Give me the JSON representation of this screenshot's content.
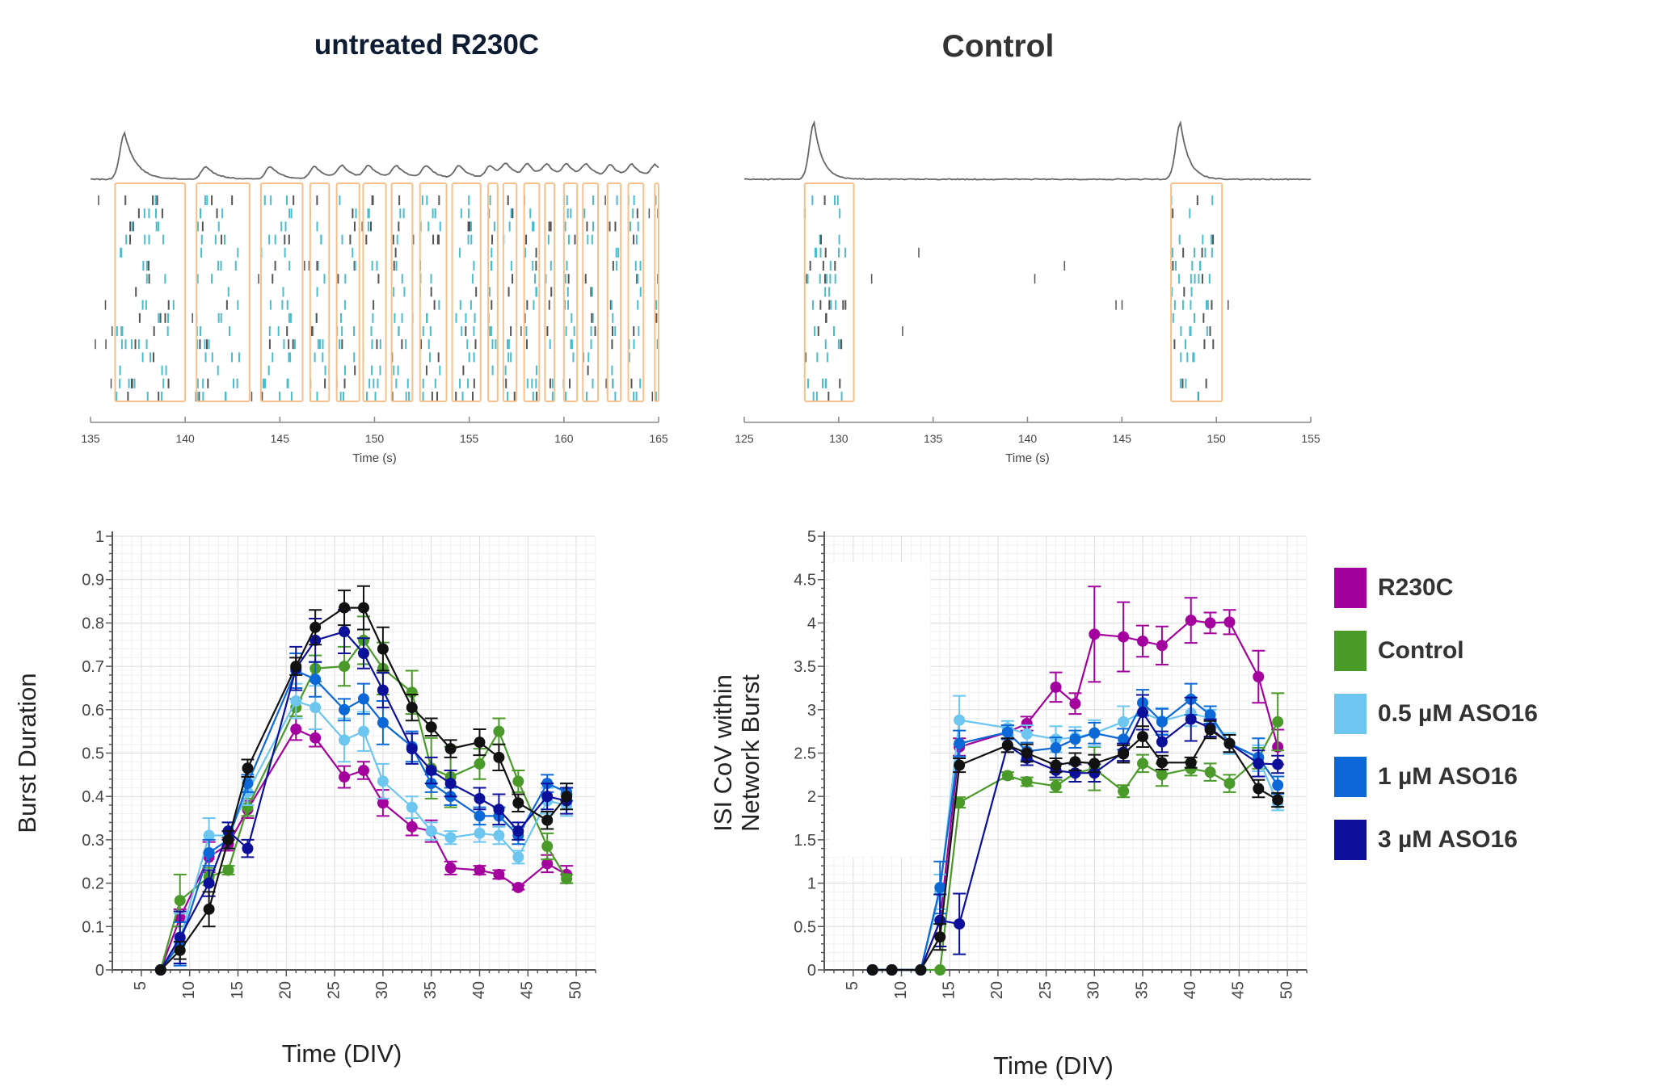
{
  "titles": {
    "left": "untreated R230C",
    "right": "Control"
  },
  "legend": {
    "items": [
      {
        "label": "R230C",
        "color": "#a3009e"
      },
      {
        "label": "Control",
        "color": "#4a9a2a"
      },
      {
        "label": "0.5 µM ASO16",
        "color": "#6cc6f0"
      },
      {
        "label": "1 µM ASO16",
        "color": "#0b68d6"
      },
      {
        "label": "3 µM ASO16",
        "color": "#0b0f9a"
      }
    ]
  },
  "chart_data": [
    {
      "type": "scatter",
      "title": "untreated R230C",
      "xlabel": "Time (s)",
      "xlim": [
        135,
        165
      ],
      "xticks": [
        135,
        140,
        145,
        150,
        155,
        160,
        165
      ],
      "burst_windows": [
        [
          136.3,
          140.0
        ],
        [
          140.6,
          143.4
        ],
        [
          144.0,
          146.2
        ],
        [
          146.6,
          147.6
        ],
        [
          148.0,
          149.2
        ],
        [
          149.4,
          150.6
        ],
        [
          150.9,
          152.0
        ],
        [
          152.4,
          153.8
        ],
        [
          154.1,
          155.6
        ],
        [
          156.0,
          156.5
        ],
        [
          156.8,
          157.5
        ],
        [
          157.9,
          158.7
        ],
        [
          159.0,
          159.5
        ],
        [
          160.0,
          160.7
        ],
        [
          161.0,
          161.8
        ],
        [
          162.3,
          163.0
        ],
        [
          163.4,
          164.2
        ],
        [
          164.8,
          165.0
        ]
      ],
      "colors": {
        "spike": "#555555",
        "burst_spike": "#4bbccc",
        "window": "#f7c08a",
        "trace": "#666666"
      }
    },
    {
      "type": "scatter",
      "title": "Control",
      "xlabel": "Time (s)",
      "xlim": [
        125,
        155
      ],
      "xticks": [
        125,
        130,
        135,
        140,
        145,
        150,
        155
      ],
      "burst_windows": [
        [
          128.2,
          130.8
        ],
        [
          147.6,
          150.3
        ]
      ],
      "colors": {
        "spike": "#555555",
        "burst_spike": "#4bbccc",
        "window": "#f7c08a",
        "trace": "#666666"
      }
    },
    {
      "type": "line",
      "xlabel": "Time (DIV)",
      "ylabel": "Burst Duration",
      "xlim": [
        2,
        52
      ],
      "ylim": [
        0,
        1
      ],
      "grid": true,
      "xticks": [
        5,
        10,
        15,
        20,
        25,
        30,
        35,
        40,
        45,
        50
      ],
      "yticks": [
        0,
        0.1,
        0.2,
        0.3,
        0.4,
        0.5,
        0.6,
        0.7,
        0.8,
        0.9,
        1
      ],
      "ytick_labels": [
        "0",
        "0.1",
        "0.2",
        "0.3",
        "0.4",
        "0.5",
        "0.6",
        "0.7",
        "0.8",
        "0.9",
        "1"
      ],
      "x": [
        7,
        9,
        12,
        14,
        16,
        21,
        23,
        26,
        28,
        30,
        33,
        35,
        37,
        40,
        42,
        44,
        47,
        49
      ],
      "series": [
        {
          "name": "R230C",
          "color": "#a3009e",
          "values": [
            0,
            0.12,
            0.26,
            0.29,
            0.37,
            0.555,
            0.535,
            0.445,
            0.46,
            0.385,
            0.33,
            0.32,
            0.235,
            0.23,
            0.22,
            0.19,
            0.245,
            0.22
          ],
          "err": [
            0,
            0.02,
            0.035,
            0.015,
            0.02,
            0.025,
            0.02,
            0.025,
            0.02,
            0.03,
            0.02,
            0.025,
            0.015,
            0.01,
            0.01,
            0.005,
            0.02,
            0.02
          ]
        },
        {
          "name": "Control",
          "color": "#4a9a2a",
          "values": [
            0,
            0.16,
            0.215,
            0.23,
            0.375,
            0.605,
            0.695,
            0.7,
            0.76,
            0.695,
            0.64,
            0.465,
            0.445,
            0.475,
            0.55,
            0.435,
            0.285,
            0.21
          ],
          "err": [
            0,
            0.06,
            0.02,
            0.01,
            0.02,
            0.02,
            0.03,
            0.045,
            0.055,
            0.06,
            0.05,
            0.07,
            0.07,
            0.035,
            0.03,
            0.025,
            0.03,
            0.01
          ]
        },
        {
          "name": "0.5 µM ASO16",
          "color": "#6cc6f0",
          "values": [
            0,
            0.07,
            0.31,
            0.31,
            0.41,
            0.62,
            0.605,
            0.53,
            0.55,
            0.435,
            0.375,
            0.32,
            0.305,
            0.315,
            0.31,
            0.26,
            0.39,
            0.38
          ],
          "err": [
            0,
            0.06,
            0.04,
            0.03,
            0.03,
            0.04,
            0.05,
            0.05,
            0.045,
            0.04,
            0.025,
            0.02,
            0.015,
            0.02,
            0.02,
            0.015,
            0.03,
            0.025
          ]
        },
        {
          "name": "1 µM ASO16",
          "color": "#0b68d6",
          "values": [
            0,
            0.06,
            0.27,
            0.3,
            0.43,
            0.69,
            0.67,
            0.6,
            0.625,
            0.57,
            0.515,
            0.43,
            0.4,
            0.355,
            0.355,
            0.31,
            0.43,
            0.41
          ],
          "err": [
            0,
            0.05,
            0.03,
            0.02,
            0.02,
            0.04,
            0.04,
            0.025,
            0.035,
            0.05,
            0.035,
            0.02,
            0.02,
            0.02,
            0.02,
            0.02,
            0.02,
            0.02
          ]
        },
        {
          "name": "3 µM ASO16",
          "color": "#0b0f9a",
          "values": [
            0,
            0.075,
            0.2,
            0.32,
            0.28,
            0.695,
            0.76,
            0.78,
            0.73,
            0.645,
            0.51,
            0.46,
            0.43,
            0.395,
            0.37,
            0.32,
            0.4,
            0.39
          ],
          "err": [
            0,
            0.06,
            0.03,
            0.02,
            0.02,
            0.05,
            0.05,
            0.05,
            0.035,
            0.04,
            0.035,
            0.03,
            0.03,
            0.025,
            0.035,
            0.02,
            0.03,
            0.03
          ]
        },
        {
          "color": "#111111",
          "values": [
            0,
            0.045,
            0.14,
            0.3,
            0.465,
            0.7,
            0.79,
            0.835,
            0.835,
            0.74,
            0.605,
            0.56,
            0.51,
            0.525,
            0.49,
            0.385,
            0.345,
            0.4
          ],
          "err": [
            0,
            0.02,
            0.04,
            0.02,
            0.02,
            0.02,
            0.04,
            0.04,
            0.05,
            0.05,
            0.03,
            0.02,
            0.02,
            0.03,
            0.03,
            0.02,
            0.02,
            0.03
          ]
        }
      ]
    },
    {
      "type": "line",
      "xlabel": "Time (DIV)",
      "ylabel": "ISI CoV within Network Burst",
      "xlim": [
        2,
        52
      ],
      "ylim": [
        0,
        5
      ],
      "grid": true,
      "xticks": [
        5,
        10,
        15,
        20,
        25,
        30,
        35,
        40,
        45,
        50
      ],
      "yticks": [
        0,
        0.5,
        1,
        1.5,
        2,
        2.5,
        3,
        3.5,
        4,
        4.5,
        5
      ],
      "ytick_labels": [
        "0",
        "0.5",
        "1",
        "1.5",
        "2",
        "2.5",
        "3",
        "3.5",
        "4",
        "4.5",
        "5"
      ],
      "x": [
        7,
        9,
        12,
        14,
        16,
        21,
        23,
        26,
        28,
        30,
        33,
        35,
        37,
        40,
        42,
        44,
        47,
        49
      ],
      "series": [
        {
          "name": "R230C",
          "color": "#a3009e",
          "values": [
            0,
            0,
            0,
            0.57,
            2.57,
            2.74,
            2.84,
            3.26,
            3.07,
            3.87,
            3.84,
            3.79,
            3.74,
            4.03,
            4.0,
            4.01,
            3.38,
            2.57
          ],
          "err": [
            0,
            0,
            0,
            0.3,
            0.1,
            0.08,
            0.08,
            0.17,
            0.12,
            0.55,
            0.4,
            0.18,
            0.22,
            0.26,
            0.12,
            0.14,
            0.3,
            0.2
          ]
        },
        {
          "name": "Control",
          "color": "#4a9a2a",
          "values": [
            0,
            0,
            0,
            0,
            1.93,
            2.24,
            2.17,
            2.12,
            2.27,
            2.32,
            2.06,
            2.38,
            2.25,
            2.32,
            2.28,
            2.15,
            2.44,
            2.86
          ],
          "err": [
            0,
            0,
            0,
            0,
            0.06,
            0.04,
            0.05,
            0.07,
            0.1,
            0.25,
            0.07,
            0.1,
            0.13,
            0.08,
            0.1,
            0.1,
            0.12,
            0.33
          ]
        },
        {
          "name": "0.5 µM ASO16",
          "color": "#6cc6f0",
          "values": [
            0,
            0,
            0,
            0.9,
            2.88,
            2.79,
            2.72,
            2.66,
            2.68,
            2.73,
            2.86,
            2.97,
            2.87,
            2.96,
            2.9,
            2.61,
            2.44,
            1.92
          ],
          "err": [
            0,
            0,
            0,
            0.2,
            0.28,
            0.08,
            0.1,
            0.15,
            0.12,
            0.15,
            0.18,
            0.2,
            0.15,
            0.15,
            0.1,
            0.12,
            0.15,
            0.08
          ]
        },
        {
          "name": "1 µM ASO16",
          "color": "#0b68d6",
          "values": [
            0,
            0,
            0,
            0.95,
            2.61,
            2.74,
            2.52,
            2.56,
            2.66,
            2.73,
            2.66,
            3.08,
            2.86,
            3.12,
            2.94,
            2.61,
            2.45,
            2.13
          ],
          "err": [
            0,
            0,
            0,
            0.3,
            0.15,
            0.08,
            0.1,
            0.12,
            0.1,
            0.12,
            0.12,
            0.15,
            0.15,
            0.18,
            0.1,
            0.1,
            0.22,
            0.1
          ]
        },
        {
          "name": "3 µM ASO16",
          "color": "#0b0f9a",
          "values": [
            0,
            0,
            0,
            0.57,
            0.53,
            2.59,
            2.44,
            2.3,
            2.27,
            2.27,
            2.51,
            2.97,
            2.63,
            2.89,
            2.79,
            2.61,
            2.38,
            2.37
          ],
          "err": [
            0,
            0,
            0,
            0.3,
            0.35,
            0.08,
            0.08,
            0.08,
            0.1,
            0.1,
            0.1,
            0.2,
            0.12,
            0.25,
            0.1,
            0.1,
            0.15,
            0.1
          ]
        },
        {
          "color": "#111111",
          "values": [
            0,
            0,
            0,
            0.38,
            2.36,
            2.59,
            2.5,
            2.36,
            2.4,
            2.38,
            2.49,
            2.69,
            2.39,
            2.39,
            2.77,
            2.61,
            2.09,
            1.96
          ],
          "err": [
            0,
            0,
            0,
            0.15,
            0.08,
            0.08,
            0.1,
            0.08,
            0.1,
            0.1,
            0.1,
            0.12,
            0.08,
            0.06,
            0.1,
            0.1,
            0.1,
            0.08
          ]
        }
      ]
    }
  ]
}
